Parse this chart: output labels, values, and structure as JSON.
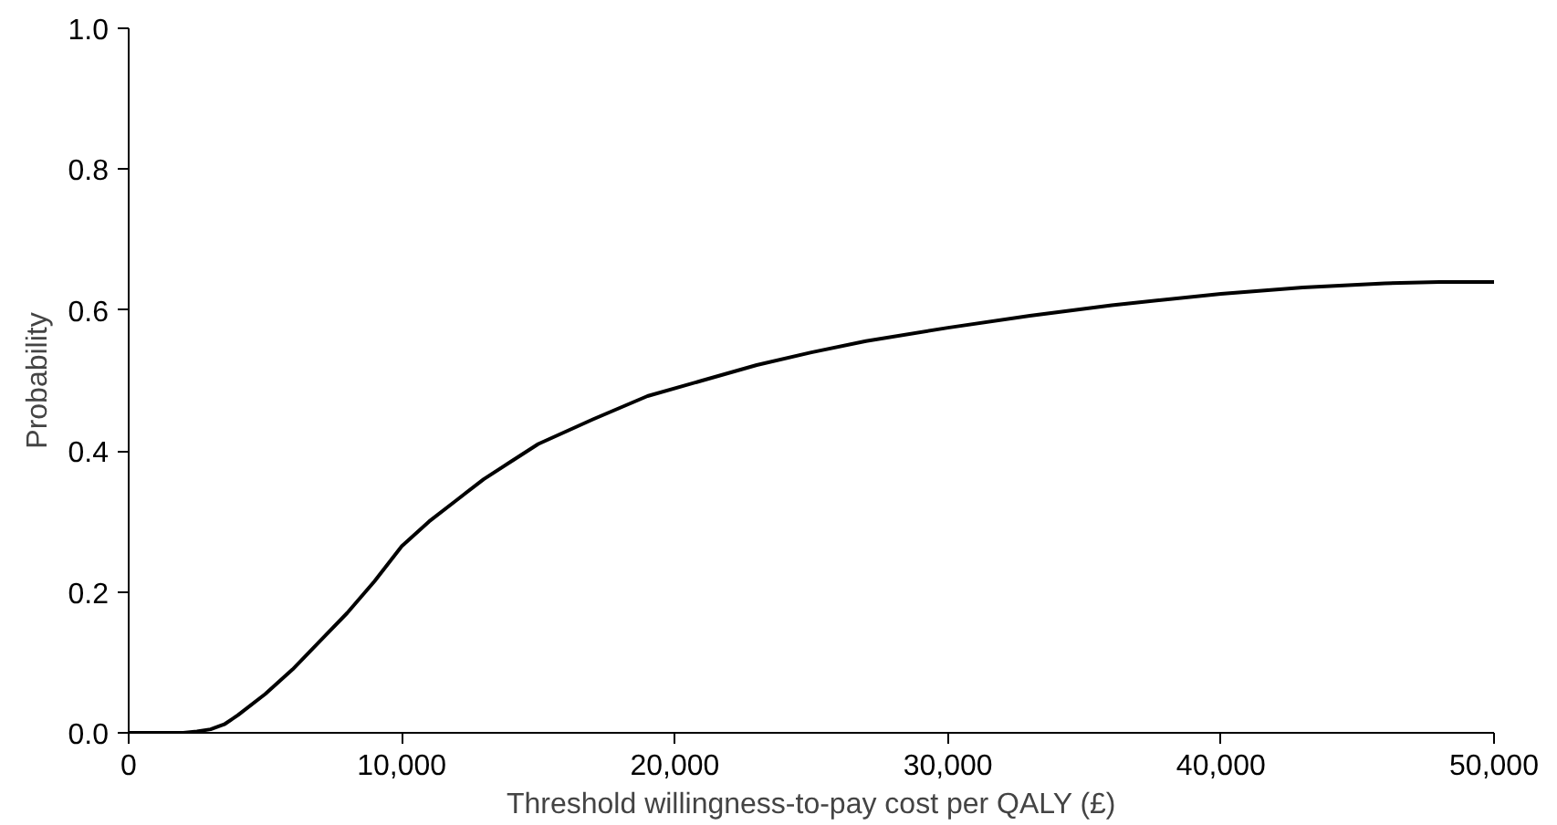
{
  "chart_data": {
    "type": "line",
    "xlabel": "Threshold willingness-to-pay cost per QALY (£)",
    "ylabel": "Probability",
    "x": [
      0,
      1000,
      2000,
      2500,
      3000,
      3500,
      4000,
      5000,
      6000,
      7000,
      8000,
      9000,
      10000,
      11000,
      12000,
      13000,
      14000,
      15000,
      17000,
      19000,
      21000,
      23000,
      25000,
      27000,
      30000,
      33000,
      36000,
      40000,
      43000,
      46000,
      48000,
      50000
    ],
    "series": [
      {
        "color": "#000000",
        "values": [
          0,
          0,
          0,
          0.002,
          0.005,
          0.012,
          0.025,
          0.055,
          0.09,
          0.13,
          0.17,
          0.215,
          0.265,
          0.3,
          0.33,
          0.36,
          0.385,
          0.41,
          0.445,
          0.478,
          0.5,
          0.522,
          0.54,
          0.556,
          0.575,
          0.592,
          0.607,
          0.623,
          0.632,
          0.638,
          0.64,
          0.64
        ]
      }
    ],
    "xlim": [
      0,
      50000
    ],
    "xticks": [
      0,
      {
        "value": 10000,
        "label": "10,000"
      },
      {
        "value": 20000,
        "label": "20,000"
      },
      {
        "value": 30000,
        "label": "30,000"
      },
      {
        "value": 40000,
        "label": "40,000"
      },
      {
        "value": 50000,
        "label": "50,000"
      }
    ],
    "ylim": [
      0,
      1
    ],
    "yticks": [
      {
        "value": 0,
        "label": "0.0"
      },
      {
        "value": 0.2,
        "label": "0.2"
      },
      {
        "value": 0.4,
        "label": "0.4"
      },
      {
        "value": 0.6,
        "label": "0.6"
      },
      {
        "value": 0.8,
        "label": "0.8"
      },
      {
        "value": 1,
        "label": "1.0"
      }
    ],
    "grid": false,
    "marker": "none",
    "line_style": "solid"
  }
}
